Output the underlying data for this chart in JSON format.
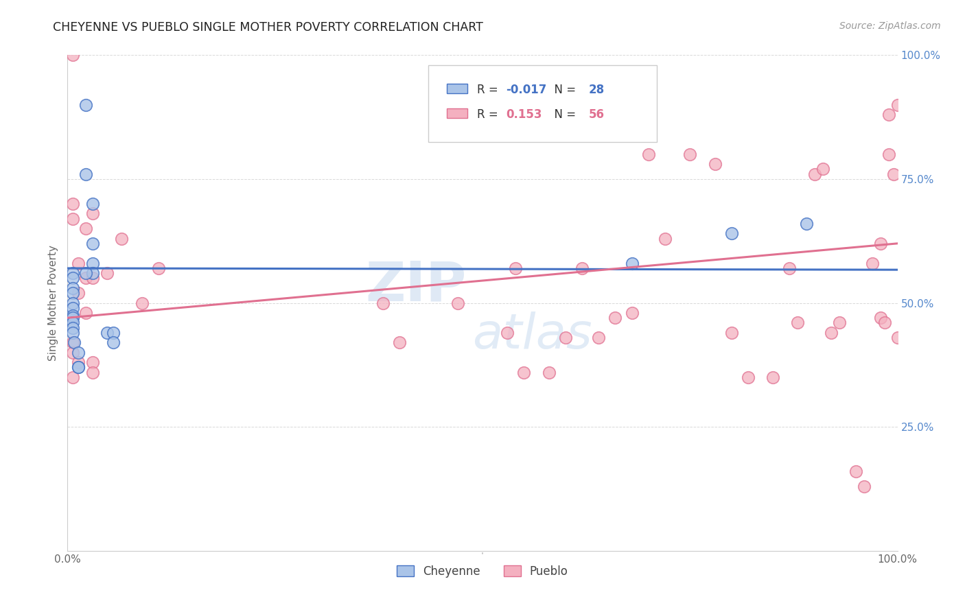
{
  "title": "CHEYENNE VS PUEBLO SINGLE MOTHER POVERTY CORRELATION CHART",
  "source": "Source: ZipAtlas.com",
  "ylabel": "Single Mother Poverty",
  "legend_cheyenne_r": "R = ",
  "legend_cheyenne_rv": "-0.017",
  "legend_cheyenne_n": "  N = ",
  "legend_cheyenne_nv": "28",
  "legend_pueblo_r": "R =  ",
  "legend_pueblo_rv": "0.153",
  "legend_pueblo_n": "  N = ",
  "legend_pueblo_nv": "56",
  "cheyenne_color": "#aac4e8",
  "pueblo_color": "#f4b0c0",
  "cheyenne_line_color": "#4472c4",
  "pueblo_line_color": "#e07090",
  "background_color": "#ffffff",
  "grid_color": "#d8d8d8",
  "cheyenne_x": [
    0.022,
    0.022,
    0.03,
    0.03,
    0.03,
    0.03,
    0.006,
    0.006,
    0.006,
    0.006,
    0.006,
    0.006,
    0.006,
    0.006,
    0.006,
    0.006,
    0.006,
    0.008,
    0.013,
    0.013,
    0.013,
    0.022,
    0.048,
    0.055,
    0.055,
    0.68,
    0.8,
    0.89
  ],
  "cheyenne_y": [
    0.9,
    0.76,
    0.7,
    0.62,
    0.58,
    0.56,
    0.56,
    0.55,
    0.53,
    0.52,
    0.5,
    0.49,
    0.475,
    0.47,
    0.46,
    0.45,
    0.44,
    0.42,
    0.4,
    0.37,
    0.37,
    0.56,
    0.44,
    0.44,
    0.42,
    0.58,
    0.64,
    0.66
  ],
  "pueblo_x": [
    0.006,
    0.006,
    0.006,
    0.006,
    0.006,
    0.006,
    0.013,
    0.013,
    0.013,
    0.022,
    0.022,
    0.022,
    0.03,
    0.03,
    0.03,
    0.03,
    0.048,
    0.065,
    0.09,
    0.11,
    0.38,
    0.4,
    0.47,
    0.53,
    0.54,
    0.55,
    0.58,
    0.6,
    0.62,
    0.64,
    0.66,
    0.68,
    0.7,
    0.72,
    0.75,
    0.78,
    0.8,
    0.82,
    0.85,
    0.87,
    0.88,
    0.9,
    0.91,
    0.92,
    0.93,
    0.95,
    0.96,
    0.97,
    0.98,
    0.985,
    0.99,
    1.0,
    1.0,
    0.995,
    0.99,
    0.98
  ],
  "pueblo_y": [
    1.0,
    0.7,
    0.67,
    0.42,
    0.4,
    0.35,
    0.58,
    0.52,
    0.38,
    0.65,
    0.55,
    0.48,
    0.68,
    0.55,
    0.38,
    0.36,
    0.56,
    0.63,
    0.5,
    0.57,
    0.5,
    0.42,
    0.5,
    0.44,
    0.57,
    0.36,
    0.36,
    0.43,
    0.57,
    0.43,
    0.47,
    0.48,
    0.8,
    0.63,
    0.8,
    0.78,
    0.44,
    0.35,
    0.35,
    0.57,
    0.46,
    0.76,
    0.77,
    0.44,
    0.46,
    0.16,
    0.13,
    0.58,
    0.47,
    0.46,
    0.88,
    0.9,
    0.43,
    0.76,
    0.8,
    0.62
  ],
  "watermark_zip": "ZIP",
  "watermark_atlas": "atlas",
  "ytick_labels": [
    "25.0%",
    "50.0%",
    "75.0%",
    "100.0%"
  ],
  "ytick_vals": [
    0.25,
    0.5,
    0.75,
    1.0
  ]
}
